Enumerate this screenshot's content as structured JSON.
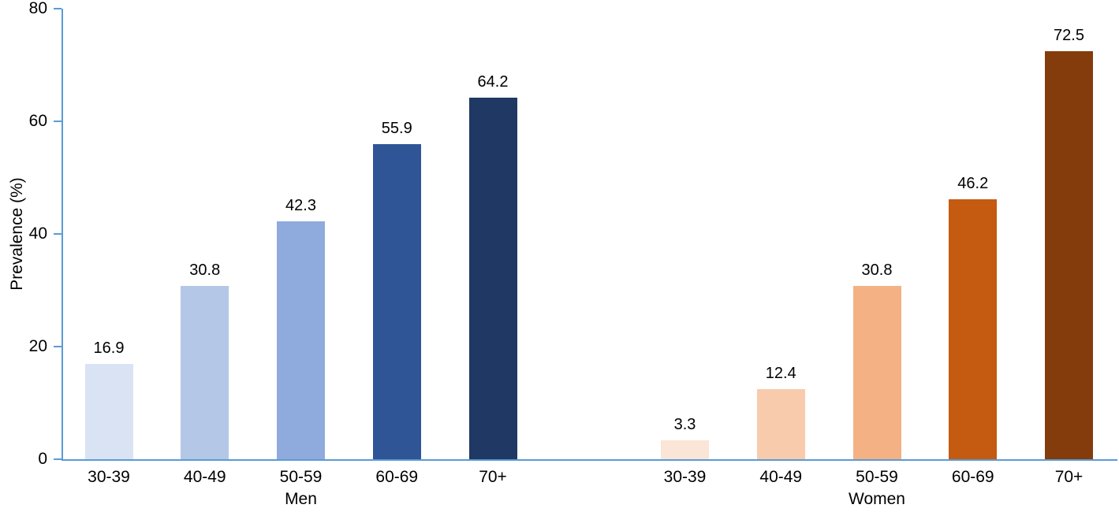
{
  "chart_data": {
    "type": "bar",
    "title": "",
    "xlabel": "",
    "ylabel": "Prevalence (%)",
    "ylim": [
      0,
      80
    ],
    "yticks": [
      0,
      20,
      40,
      60,
      80
    ],
    "grid": false,
    "legend": "none",
    "axis_color": "#5b9bd5",
    "text_color": "#000000",
    "groups": [
      {
        "name": "Men",
        "categories": [
          "30-39",
          "40-49",
          "50-59",
          "60-69",
          "70+"
        ],
        "values": [
          16.9,
          30.8,
          42.3,
          55.9,
          64.2
        ],
        "value_labels": [
          "16.9",
          "30.8",
          "42.3",
          "55.9",
          "64.2"
        ],
        "colors": [
          "#dae3f3",
          "#b4c7e7",
          "#8faadc",
          "#2f5597",
          "#1f3864"
        ]
      },
      {
        "name": "Women",
        "categories": [
          "30-39",
          "40-49",
          "50-59",
          "60-69",
          "70+"
        ],
        "values": [
          3.3,
          12.4,
          30.8,
          46.2,
          72.5
        ],
        "value_labels": [
          "3.3",
          "12.4",
          "30.8",
          "46.2",
          "72.5"
        ],
        "colors": [
          "#fbe5d6",
          "#f8cbad",
          "#f4b183",
          "#c55a11",
          "#843c0c"
        ]
      }
    ]
  }
}
